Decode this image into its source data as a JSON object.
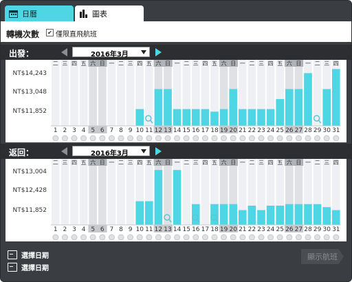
{
  "tabs": [
    {
      "label": "日曆",
      "icon": "calendar-icon",
      "active": true
    },
    {
      "label": "圖表",
      "icon": "bar-chart-icon",
      "active": false
    }
  ],
  "options": {
    "transfer_label": "轉機次數",
    "direct_only_label": "僅限直飛航班",
    "direct_only_checked": true
  },
  "colors": {
    "accent": "#4fd6e4",
    "bar": "#4fd6e4",
    "weekend_col": "#e6e8ec",
    "weekend_label_bg": "#aeb1b6",
    "frame": "#3a3d42"
  },
  "weekdays": [
    "二",
    "三",
    "四",
    "五",
    "六",
    "日",
    "一",
    "二",
    "三",
    "四",
    "五",
    "六",
    "日",
    "一",
    "二",
    "三",
    "四",
    "五",
    "六",
    "日",
    "一",
    "二",
    "三",
    "四",
    "五",
    "六",
    "日",
    "一",
    "二",
    "三",
    "四"
  ],
  "weekend_days": [
    5,
    6,
    12,
    13,
    19,
    20,
    26,
    27
  ],
  "outbound": {
    "label": "出發：",
    "month": "2016年3月",
    "y_labels": [
      "NT$14,243",
      "NT$13,048",
      "NT$11,852"
    ],
    "magnifier_days": [
      11,
      29
    ],
    "chart_data": {
      "type": "bar",
      "x": [
        1,
        2,
        3,
        4,
        5,
        6,
        7,
        8,
        9,
        10,
        11,
        12,
        13,
        14,
        15,
        16,
        17,
        18,
        19,
        20,
        21,
        22,
        23,
        24,
        25,
        26,
        27,
        28,
        29,
        30,
        31
      ],
      "values": [
        null,
        null,
        null,
        null,
        null,
        null,
        null,
        null,
        null,
        11852,
        null,
        13048,
        13048,
        11852,
        11852,
        11852,
        11852,
        11700,
        11852,
        13048,
        11852,
        11852,
        11852,
        11852,
        12450,
        13048,
        13048,
        14000,
        null,
        13048,
        14243
      ],
      "y_labels": [
        "NT$14,243",
        "NT$13,048",
        "NT$11,852"
      ],
      "ylim": [
        10850,
        14300
      ]
    }
  },
  "inbound": {
    "label": "返回：",
    "month": "2016年3月",
    "y_labels": [
      "NT$13,004",
      "NT$12,428",
      "NT$11,852"
    ],
    "magnifier_days": [
      13,
      16,
      18
    ],
    "chart_data": {
      "type": "bar",
      "x": [
        1,
        2,
        3,
        4,
        5,
        6,
        7,
        8,
        9,
        10,
        11,
        12,
        13,
        14,
        15,
        16,
        17,
        18,
        19,
        20,
        21,
        22,
        23,
        24,
        25,
        26,
        27,
        28,
        29,
        30,
        31
      ],
      "values": [
        null,
        null,
        null,
        null,
        null,
        null,
        null,
        null,
        null,
        11950,
        11950,
        13004,
        null,
        13004,
        null,
        11852,
        null,
        11852,
        11852,
        11852,
        11650,
        11800,
        11650,
        11800,
        11800,
        11852,
        11852,
        11852,
        11852,
        11750,
        11650
      ],
      "y_labels": [
        "NT$13,004",
        "NT$12,428",
        "NT$11,852"
      ],
      "ylim": [
        11150,
        13100
      ]
    }
  },
  "actions": {
    "select_out": "選擇日期",
    "select_ret": "選擇日期",
    "show_flights": "顯示航班"
  }
}
